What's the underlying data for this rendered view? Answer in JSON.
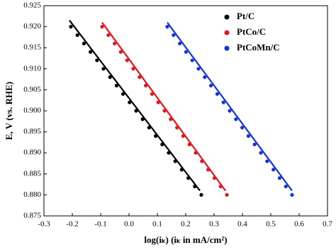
{
  "chart_data": {
    "type": "scatter",
    "xlabel": "log(iₖ) (iₖ in mA/cm²)",
    "ylabel": "E, V (vs. RHE)",
    "xlim": [
      -0.3,
      0.7
    ],
    "xticks": [
      -0.3,
      -0.2,
      -0.1,
      {
        "value": 0,
        "label": "0.0"
      },
      0.1,
      0.2,
      0.3,
      0.4,
      0.5,
      0.6,
      0.7
    ],
    "ylim": [
      0.875,
      0.925
    ],
    "yticks": [
      0.875,
      {
        "value": 0.88,
        "label": "0.880"
      },
      0.885,
      {
        "value": 0.89,
        "label": "0.890"
      },
      0.895,
      {
        "value": 0.9,
        "label": "0.900"
      },
      0.905,
      {
        "value": 0.91,
        "label": "0.910"
      },
      0.915,
      {
        "value": 0.92,
        "label": "0.920"
      },
      0.925
    ],
    "legend": "top-right",
    "series": [
      {
        "name": "Pt/C",
        "color": "#000000",
        "x": [
          -0.205,
          -0.182,
          -0.159,
          -0.136,
          -0.113,
          -0.09,
          -0.067,
          -0.044,
          -0.021,
          0.002,
          0.025,
          0.048,
          0.071,
          0.094,
          0.117,
          0.14,
          0.163,
          0.186,
          0.209,
          0.232,
          0.255
        ],
        "values": [
          0.92,
          0.918,
          0.916,
          0.914,
          0.912,
          0.91,
          0.908,
          0.906,
          0.904,
          0.902,
          0.9,
          0.898,
          0.896,
          0.894,
          0.892,
          0.89,
          0.888,
          0.886,
          0.884,
          0.882,
          0.88
        ]
      },
      {
        "name": "PtCo/C",
        "color": "#e8141c",
        "x": [
          -0.095,
          -0.073,
          -0.051,
          -0.029,
          -0.007,
          0.015,
          0.037,
          0.059,
          0.081,
          0.103,
          0.125,
          0.147,
          0.169,
          0.191,
          0.213,
          0.235,
          0.257,
          0.279,
          0.301,
          0.323,
          0.345
        ],
        "values": [
          0.92,
          0.918,
          0.916,
          0.914,
          0.912,
          0.91,
          0.908,
          0.906,
          0.904,
          0.902,
          0.9,
          0.898,
          0.896,
          0.894,
          0.892,
          0.89,
          0.888,
          0.886,
          0.884,
          0.882,
          0.88
        ]
      },
      {
        "name": "PtCoMn/C",
        "color": "#1432e0",
        "x": [
          0.135,
          0.157,
          0.179,
          0.201,
          0.223,
          0.245,
          0.267,
          0.289,
          0.311,
          0.333,
          0.355,
          0.377,
          0.399,
          0.421,
          0.443,
          0.465,
          0.487,
          0.509,
          0.531,
          0.553,
          0.575
        ],
        "values": [
          0.92,
          0.918,
          0.916,
          0.914,
          0.912,
          0.91,
          0.908,
          0.906,
          0.904,
          0.902,
          0.9,
          0.898,
          0.896,
          0.894,
          0.892,
          0.89,
          0.888,
          0.886,
          0.884,
          0.882,
          0.88
        ]
      }
    ],
    "fits": [
      {
        "color": "#000000",
        "x": [
          -0.21,
          0.25
        ],
        "values": [
          0.9215,
          0.881
        ]
      },
      {
        "color": "#e8141c",
        "x": [
          -0.095,
          0.34
        ],
        "values": [
          0.921,
          0.881
        ]
      },
      {
        "color": "#1432e0",
        "x": [
          0.135,
          0.575
        ],
        "values": [
          0.921,
          0.881
        ]
      }
    ]
  }
}
